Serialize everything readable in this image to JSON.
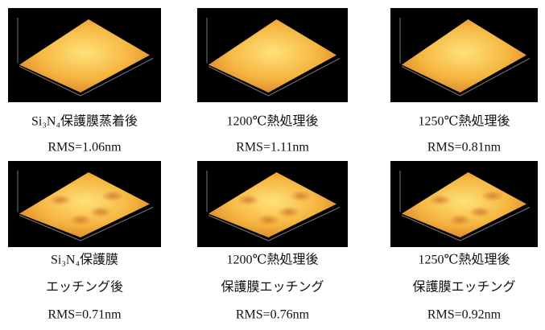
{
  "panels": [
    {
      "caption": [
        "Si₃N₄保護膜蒸着後",
        "RMS=1.06nm"
      ]
    },
    {
      "caption": [
        "1200℃熱処理後",
        "RMS=1.11nm"
      ]
    },
    {
      "caption": [
        "1250℃熱処理後",
        "RMS=0.81nm"
      ]
    },
    {
      "caption": [
        "Si₃N₄保護膜",
        "エッチング後",
        "RMS=0.71nm"
      ]
    },
    {
      "caption": [
        "1200℃熱処理後",
        "保護膜エッチング",
        "RMS=0.76nm"
      ]
    },
    {
      "caption": [
        "1250℃熱処理後",
        "保護膜エッチング",
        "RMS=0.92nm"
      ]
    }
  ]
}
